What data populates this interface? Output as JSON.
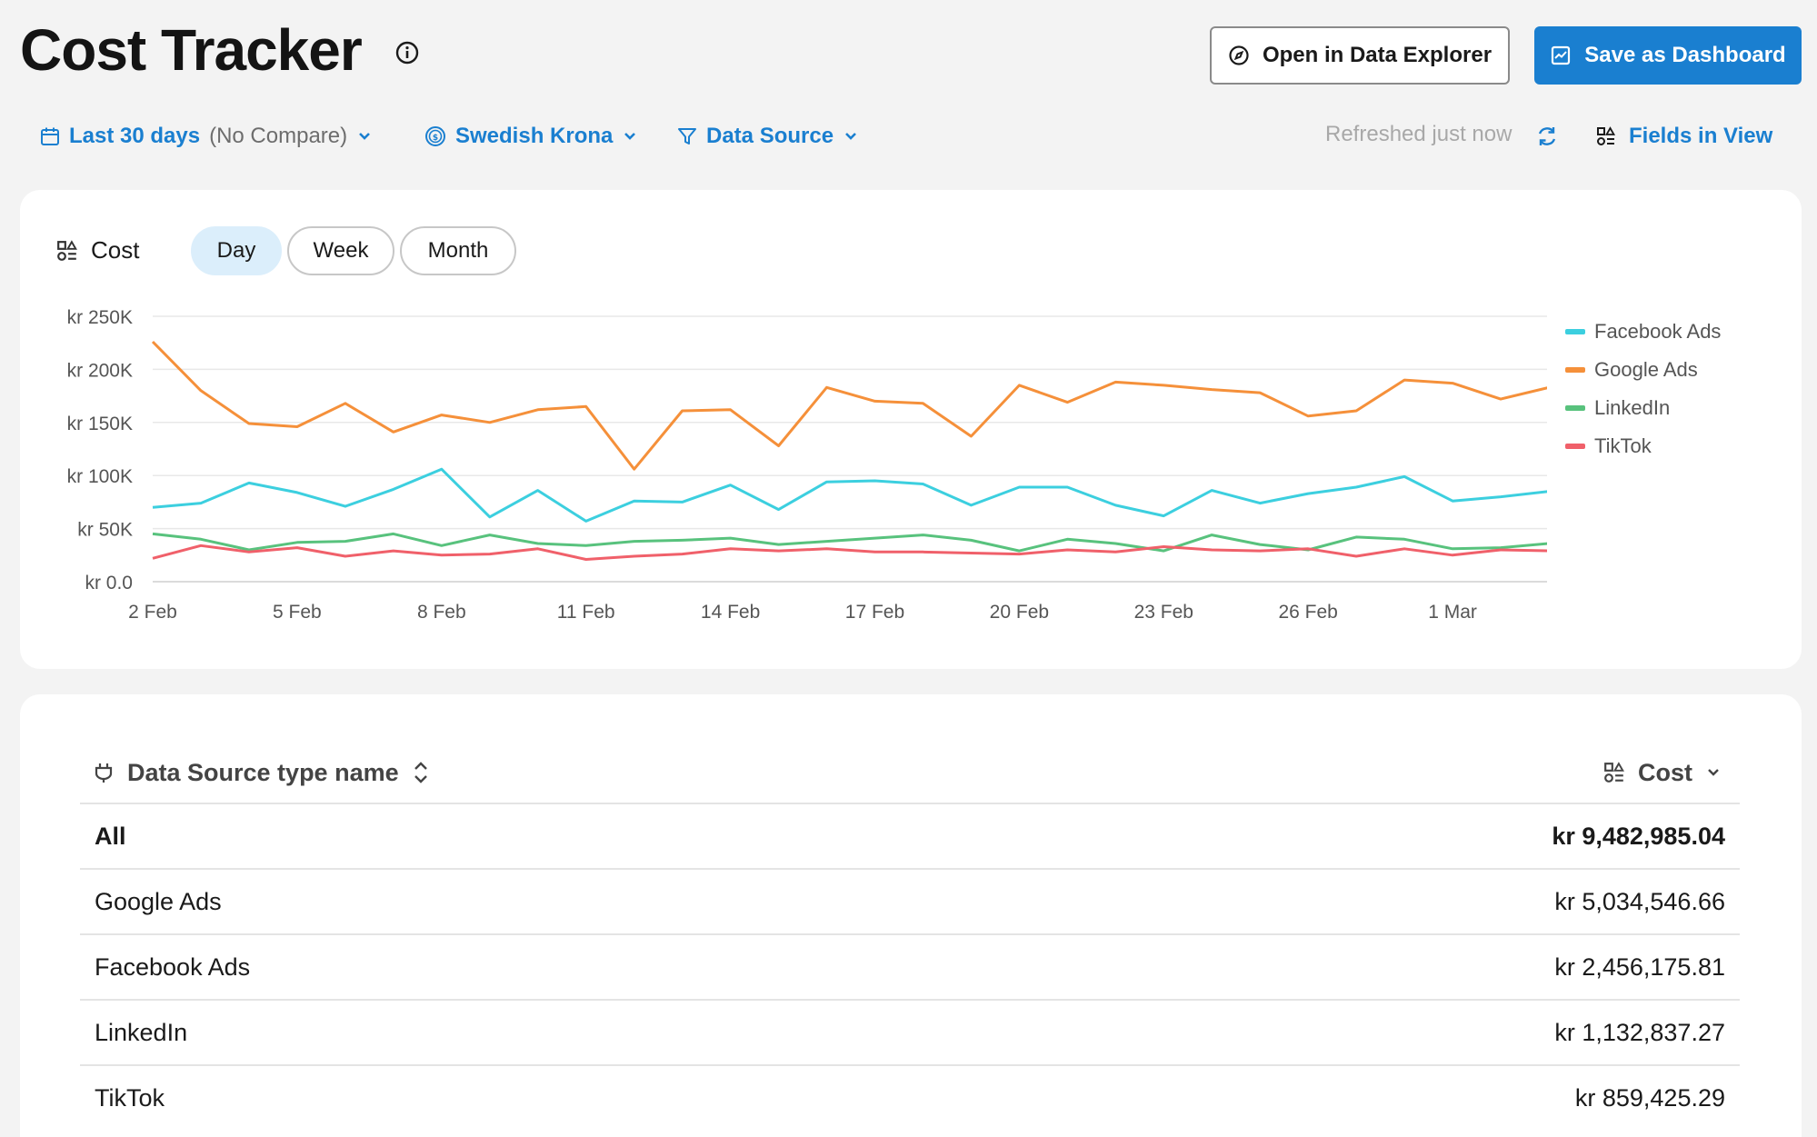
{
  "header": {
    "title": "Cost Tracker",
    "explorer_label": "Open in Data Explorer",
    "dashboard_label": "Save as Dashboard"
  },
  "filters": {
    "date_label": "Last 30 days",
    "compare_label": "(No Compare)",
    "currency_label": "Swedish Krona",
    "source_label": "Data Source",
    "refreshed_text": "Refreshed just now",
    "fields_label": "Fields in View"
  },
  "chart_card": {
    "metric_label": "Cost",
    "periods": [
      {
        "label": "Day",
        "active": true
      },
      {
        "label": "Week",
        "active": false
      },
      {
        "label": "Month",
        "active": false
      }
    ]
  },
  "chart_data": {
    "type": "line",
    "title": "",
    "xlabel": "",
    "ylabel": "",
    "ylim": [
      0,
      250000
    ],
    "y_ticks": [
      0,
      50000,
      100000,
      150000,
      200000,
      250000
    ],
    "y_tick_labels": [
      "kr 0.0",
      "kr 50K",
      "kr 100K",
      "kr 150K",
      "kr 200K",
      "kr 250K"
    ],
    "x_tick_labels": [
      {
        "index": 0,
        "label": "2 Feb"
      },
      {
        "index": 3,
        "label": "5 Feb"
      },
      {
        "index": 6,
        "label": "8 Feb"
      },
      {
        "index": 9,
        "label": "11 Feb"
      },
      {
        "index": 12,
        "label": "14 Feb"
      },
      {
        "index": 15,
        "label": "17 Feb"
      },
      {
        "index": 18,
        "label": "20 Feb"
      },
      {
        "index": 21,
        "label": "23 Feb"
      },
      {
        "index": 24,
        "label": "26 Feb"
      },
      {
        "index": 27,
        "label": "1 Mar"
      }
    ],
    "x": [
      "2 Feb",
      "3 Feb",
      "4 Feb",
      "5 Feb",
      "6 Feb",
      "7 Feb",
      "8 Feb",
      "9 Feb",
      "10 Feb",
      "11 Feb",
      "12 Feb",
      "13 Feb",
      "14 Feb",
      "15 Feb",
      "16 Feb",
      "17 Feb",
      "18 Feb",
      "19 Feb",
      "20 Feb",
      "21 Feb",
      "22 Feb",
      "23 Feb",
      "24 Feb",
      "25 Feb",
      "26 Feb",
      "27 Feb",
      "28 Feb",
      "1 Mar",
      "2 Mar",
      "3 Mar"
    ],
    "grid": true,
    "legend_position": "right",
    "series": [
      {
        "name": "Facebook Ads",
        "color": "#3ccfdf",
        "values": [
          70000,
          74000,
          93000,
          84000,
          71000,
          87000,
          106000,
          61000,
          86000,
          57000,
          76000,
          75000,
          91000,
          68000,
          94000,
          95000,
          92000,
          72000,
          89000,
          89000,
          72000,
          62000,
          86000,
          74000,
          83000,
          89000,
          99000,
          76000,
          80000,
          85000
        ]
      },
      {
        "name": "Google Ads",
        "color": "#f5903a",
        "values": [
          226000,
          180000,
          149000,
          146000,
          168000,
          141000,
          157000,
          150000,
          162000,
          165000,
          106000,
          161000,
          162000,
          128000,
          183000,
          170000,
          168000,
          137000,
          185000,
          169000,
          188000,
          185000,
          181000,
          178000,
          156000,
          161000,
          190000,
          187000,
          172000,
          183000
        ]
      },
      {
        "name": "LinkedIn",
        "color": "#58c27d",
        "values": [
          45000,
          40000,
          30000,
          37000,
          38000,
          45000,
          34000,
          44000,
          36000,
          34000,
          38000,
          39000,
          41000,
          35000,
          38000,
          41000,
          44000,
          39000,
          29000,
          40000,
          36000,
          29000,
          44000,
          35000,
          30000,
          42000,
          40000,
          31000,
          32000,
          36000
        ]
      },
      {
        "name": "TikTok",
        "color": "#f0606a",
        "values": [
          22000,
          34000,
          28000,
          32000,
          24000,
          29000,
          25000,
          26000,
          31000,
          21000,
          24000,
          26000,
          31000,
          29000,
          31000,
          28000,
          28000,
          27000,
          26000,
          30000,
          28000,
          33000,
          30000,
          29000,
          31000,
          24000,
          31000,
          25000,
          30000,
          29000
        ]
      }
    ]
  },
  "table": {
    "col_name": "Data Source type name",
    "col_cost": "Cost",
    "rows": [
      {
        "name": "All",
        "cost": "kr 9,482,985.04"
      },
      {
        "name": "Google Ads",
        "cost": "kr 5,034,546.66"
      },
      {
        "name": "Facebook Ads",
        "cost": "kr 2,456,175.81"
      },
      {
        "name": "LinkedIn",
        "cost": "kr 1,132,837.27"
      },
      {
        "name": "TikTok",
        "cost": "kr 859,425.29"
      }
    ]
  },
  "colors": {
    "accent": "#1a7fd0",
    "background": "#f3f3f3",
    "active_pill": "#dbeefb"
  }
}
